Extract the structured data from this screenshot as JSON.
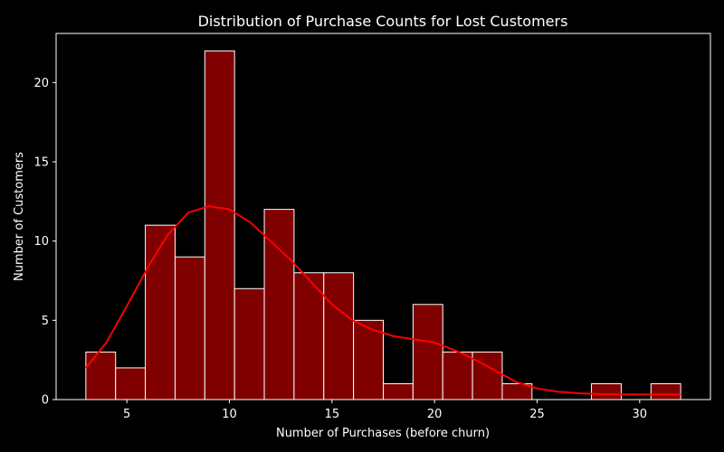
{
  "chart_data": {
    "type": "bar",
    "subtype": "histogram",
    "title": "Distribution of Purchase Counts for Lost Customers",
    "xlabel": "Number of Purchases (before churn)",
    "ylabel": "Number of Customers",
    "xlim": [
      1.55,
      33.45
    ],
    "ylim": [
      0,
      23.1
    ],
    "x_ticks": [
      5,
      10,
      15,
      20,
      25,
      30
    ],
    "y_ticks": [
      0,
      5,
      10,
      15,
      20
    ],
    "grid": false,
    "legend": "none",
    "bins": [
      {
        "start": 3.0,
        "end": 4.45,
        "count": 3
      },
      {
        "start": 4.45,
        "end": 5.9,
        "count": 2
      },
      {
        "start": 5.9,
        "end": 7.35,
        "count": 11
      },
      {
        "start": 7.35,
        "end": 8.8,
        "count": 9
      },
      {
        "start": 8.8,
        "end": 10.25,
        "count": 22
      },
      {
        "start": 10.25,
        "end": 11.7,
        "count": 7
      },
      {
        "start": 11.7,
        "end": 13.15,
        "count": 12
      },
      {
        "start": 13.15,
        "end": 14.6,
        "count": 8
      },
      {
        "start": 14.6,
        "end": 16.05,
        "count": 8
      },
      {
        "start": 16.05,
        "end": 17.5,
        "count": 5
      },
      {
        "start": 17.5,
        "end": 18.95,
        "count": 1
      },
      {
        "start": 18.95,
        "end": 20.4,
        "count": 6
      },
      {
        "start": 20.4,
        "end": 21.85,
        "count": 3
      },
      {
        "start": 21.85,
        "end": 23.3,
        "count": 3
      },
      {
        "start": 23.3,
        "end": 24.75,
        "count": 1
      },
      {
        "start": 24.75,
        "end": 26.2,
        "count": 0
      },
      {
        "start": 26.2,
        "end": 27.65,
        "count": 0
      },
      {
        "start": 27.65,
        "end": 29.1,
        "count": 1
      },
      {
        "start": 29.1,
        "end": 30.55,
        "count": 0
      },
      {
        "start": 30.55,
        "end": 32.0,
        "count": 1
      }
    ],
    "kde": {
      "x": [
        3,
        4,
        5,
        6,
        7,
        8,
        9,
        10,
        11,
        12,
        13,
        14,
        15,
        16,
        17,
        18,
        19,
        20,
        21,
        22,
        23,
        24,
        25,
        26,
        27,
        28,
        29,
        30,
        31,
        32
      ],
      "y": [
        2.0,
        3.6,
        5.9,
        8.3,
        10.4,
        11.8,
        12.2,
        12.0,
        11.2,
        10.0,
        8.8,
        7.4,
        6.0,
        5.0,
        4.4,
        4.0,
        3.8,
        3.6,
        3.1,
        2.5,
        1.8,
        1.1,
        0.7,
        0.5,
        0.4,
        0.35,
        0.33,
        0.32,
        0.32,
        0.32
      ]
    },
    "colors": {
      "background": "#000000",
      "bar_fill": "#800000",
      "bar_edge": "#ffffff",
      "kde_line": "#ff0000",
      "axes": "#ffffff",
      "text": "#ffffff"
    }
  }
}
